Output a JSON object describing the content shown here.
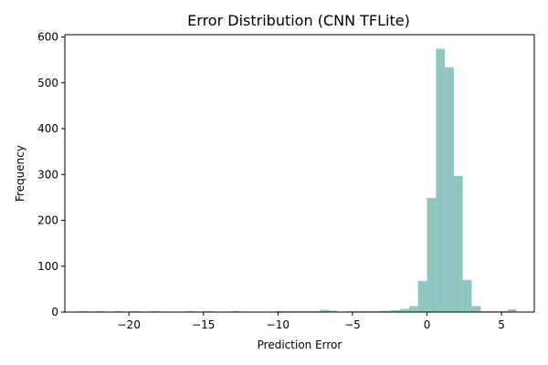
{
  "chart_data": {
    "type": "bar",
    "title": "Error Distribution (CNN TFLite)",
    "xlabel": "Prediction Error",
    "ylabel": "Frequency",
    "xlim": [
      -24.3,
      7.2
    ],
    "ylim": [
      0,
      605
    ],
    "x_ticks": [
      -20,
      -15,
      -10,
      -5,
      0,
      5
    ],
    "y_ticks": [
      0,
      100,
      200,
      300,
      400,
      500,
      600
    ],
    "bin_width": 0.6,
    "bar_color": "#8fc6c0",
    "bins": [
      {
        "x": -23.4,
        "count": 1
      },
      {
        "x": -22.2,
        "count": 1
      },
      {
        "x": -21.0,
        "count": 1
      },
      {
        "x": -19.8,
        "count": 1
      },
      {
        "x": -18.6,
        "count": 1
      },
      {
        "x": -16.2,
        "count": 1
      },
      {
        "x": -15.0,
        "count": 1
      },
      {
        "x": -13.2,
        "count": 1
      },
      {
        "x": -10.2,
        "count": 1
      },
      {
        "x": -9.6,
        "count": 1
      },
      {
        "x": -9.0,
        "count": 1
      },
      {
        "x": -8.4,
        "count": 1
      },
      {
        "x": -7.8,
        "count": 1
      },
      {
        "x": -7.2,
        "count": 5
      },
      {
        "x": -6.6,
        "count": 3
      },
      {
        "x": -5.4,
        "count": 1
      },
      {
        "x": -4.8,
        "count": 1
      },
      {
        "x": -4.2,
        "count": 1
      },
      {
        "x": -3.6,
        "count": 2
      },
      {
        "x": -3.0,
        "count": 3
      },
      {
        "x": -2.4,
        "count": 4
      },
      {
        "x": -1.8,
        "count": 7
      },
      {
        "x": -1.2,
        "count": 13
      },
      {
        "x": -0.6,
        "count": 68
      },
      {
        "x": 0.0,
        "count": 249
      },
      {
        "x": 0.6,
        "count": 574
      },
      {
        "x": 1.2,
        "count": 534
      },
      {
        "x": 1.8,
        "count": 297
      },
      {
        "x": 2.4,
        "count": 70
      },
      {
        "x": 3.0,
        "count": 13
      },
      {
        "x": 3.6,
        "count": 2
      },
      {
        "x": 4.2,
        "count": 1
      },
      {
        "x": 4.8,
        "count": 2
      },
      {
        "x": 5.4,
        "count": 6
      }
    ]
  }
}
